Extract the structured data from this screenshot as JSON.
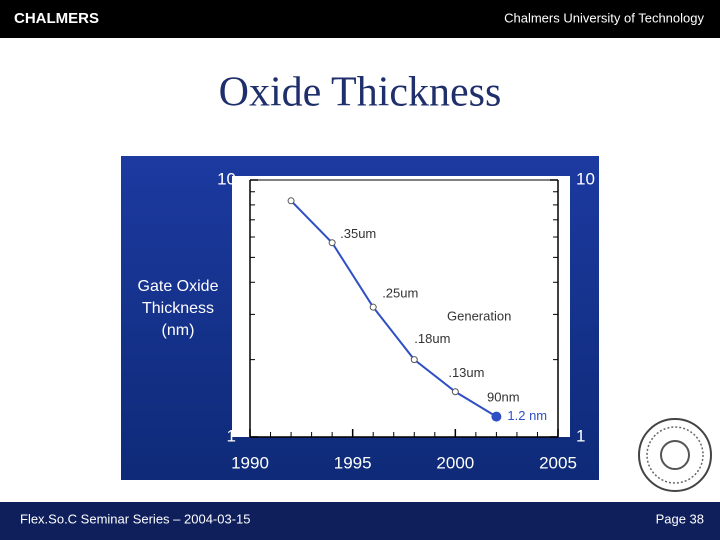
{
  "header": {
    "logo": "CHALMERS",
    "institution": "Chalmers University of Technology"
  },
  "title": "Oxide Thickness",
  "chart_data": {
    "type": "line",
    "ylabel": [
      "Gate Oxide",
      "Thickness",
      "(nm)"
    ],
    "annotation": "Generation",
    "x": [
      1992,
      1994,
      1996,
      1998,
      2000,
      2002
    ],
    "values": [
      8.3,
      5.7,
      3.2,
      2.0,
      1.5,
      1.2
    ],
    "point_labels": [
      null,
      ".35um",
      ".25um",
      ".18um",
      ".13um",
      "1.2 nm"
    ],
    "extra_labels": [
      "90nm"
    ],
    "color": "#2f4fc4",
    "xlim": [
      1990,
      2005
    ],
    "xticks": [
      1990,
      1995,
      2000,
      2005
    ],
    "xminor": [
      1991,
      1992,
      1993,
      1994,
      1996,
      1997,
      1998,
      1999,
      2001,
      2002,
      2003,
      2004
    ],
    "ylim": [
      1,
      10
    ],
    "yticks": [
      1,
      10
    ],
    "y2lim": [
      1,
      10
    ],
    "y2ticks": [
      1,
      10
    ],
    "yminor": [
      2,
      3,
      4,
      5,
      6,
      7,
      8,
      9
    ],
    "log_y": true
  },
  "footer": {
    "left": "Flex.So.C Seminar Series – 2004-03-15",
    "page": "Page 38"
  }
}
